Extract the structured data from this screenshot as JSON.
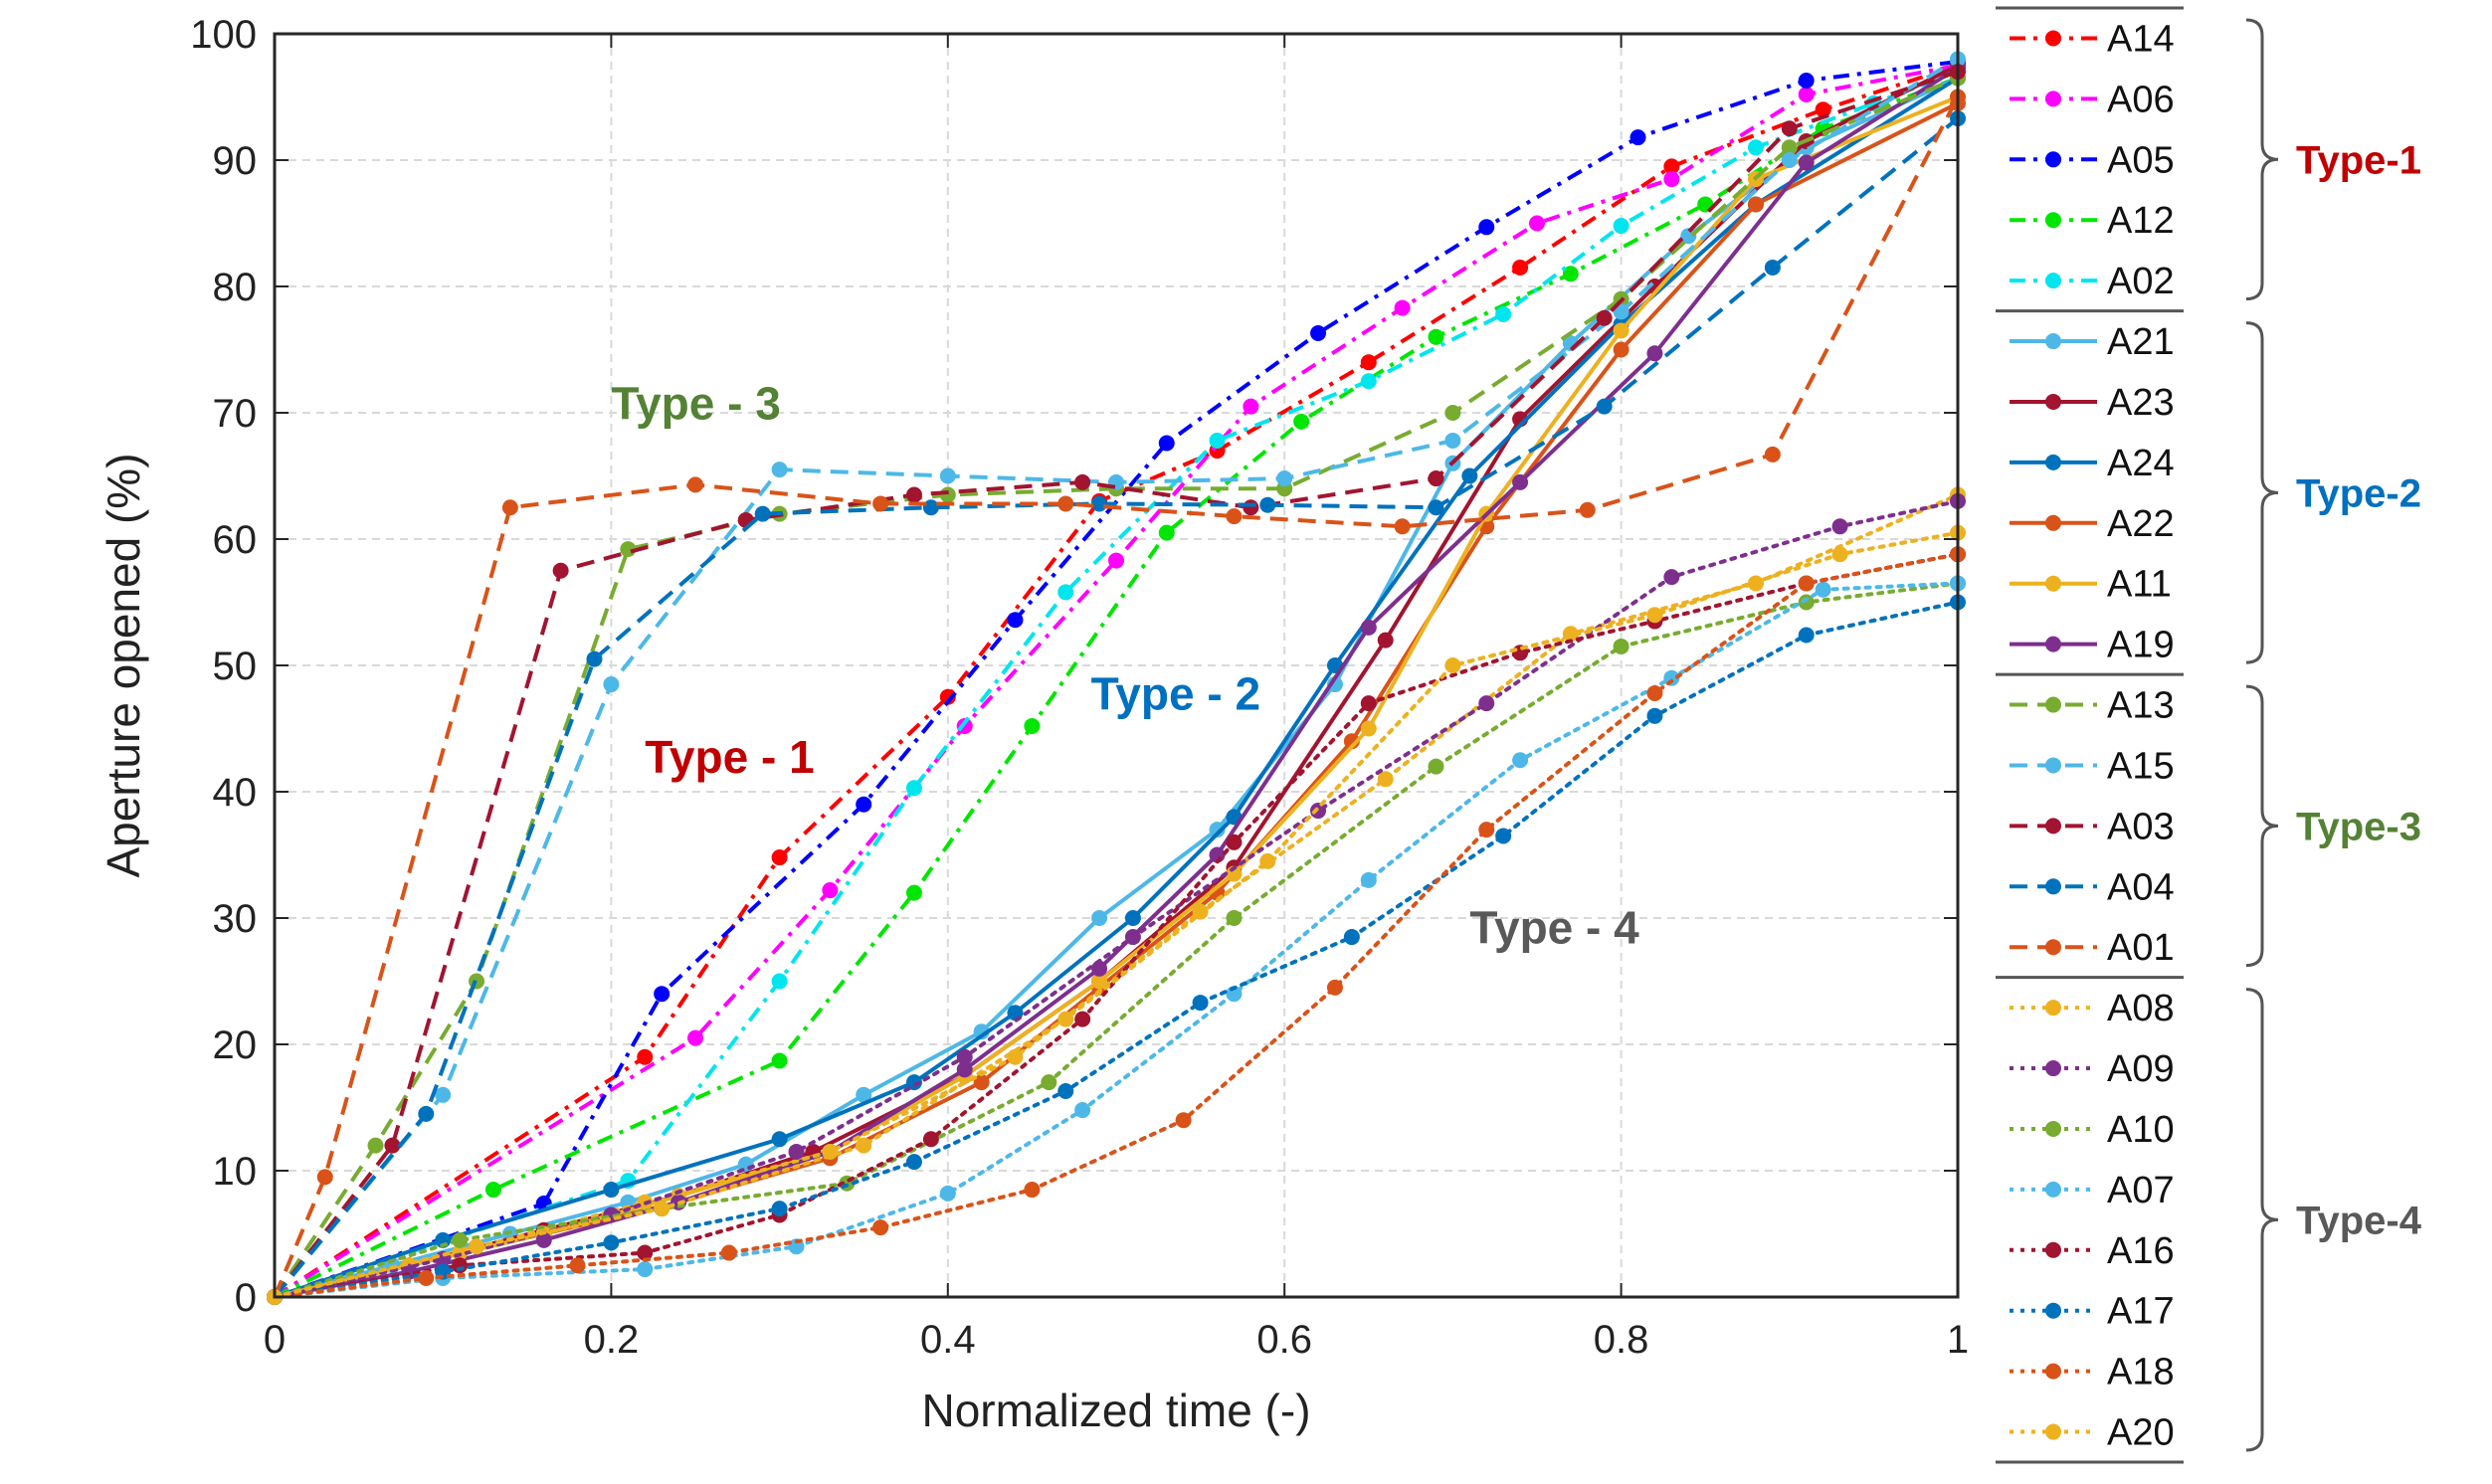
{
  "chart_data": {
    "type": "line",
    "xlabel": "Normalized time (-)",
    "ylabel": "Aperture opened (%)",
    "xlim": [
      0,
      1
    ],
    "ylim": [
      0,
      100
    ],
    "grid": true,
    "legend_position": "right",
    "xticks": [
      {
        "value": 0,
        "label": "0"
      },
      {
        "value": 0.2,
        "label": "0.2"
      },
      {
        "value": 0.4,
        "label": "0.4"
      },
      {
        "value": 0.6,
        "label": "0.6"
      },
      {
        "value": 0.8,
        "label": "0.8"
      },
      {
        "value": 1,
        "label": "1"
      }
    ],
    "yticks": [
      {
        "value": 0,
        "label": "0"
      },
      {
        "value": 10,
        "label": "10"
      },
      {
        "value": 20,
        "label": "20"
      },
      {
        "value": 30,
        "label": "30"
      },
      {
        "value": 40,
        "label": "40"
      },
      {
        "value": 50,
        "label": "50"
      },
      {
        "value": 60,
        "label": "60"
      },
      {
        "value": 70,
        "label": "70"
      },
      {
        "value": 80,
        "label": "80"
      },
      {
        "value": 90,
        "label": "90"
      },
      {
        "value": 100,
        "label": "100"
      }
    ],
    "annotations": [
      {
        "text": "Type - 3",
        "x": 0.2,
        "y": 69.5,
        "color": "#548235"
      },
      {
        "text": "Type - 1",
        "x": 0.22,
        "y": 41.5,
        "color": "#c00000"
      },
      {
        "text": "Type - 2",
        "x": 0.485,
        "y": 46.5,
        "color": "#0070c0"
      },
      {
        "text": "Type - 4",
        "x": 0.71,
        "y": 28,
        "color": "#595959"
      }
    ],
    "groups": [
      {
        "name": "Type-1",
        "color": "#c00000"
      },
      {
        "name": "Type-2",
        "color": "#0070c0"
      },
      {
        "name": "Type-3",
        "color": "#548235"
      },
      {
        "name": "Type-4",
        "color": "#595959"
      }
    ],
    "series": [
      {
        "name": "A14",
        "group": 0,
        "color": "#ff0000",
        "style": "dashdot",
        "x": [
          0,
          0.22,
          0.3,
          0.4,
          0.49,
          0.56,
          0.65,
          0.74,
          0.83,
          0.92,
          1
        ],
        "y": [
          0,
          19,
          34.8,
          47.5,
          63,
          67,
          74,
          81.5,
          89.5,
          94,
          97.5
        ]
      },
      {
        "name": "A06",
        "group": 0,
        "color": "#ff00ff",
        "style": "dashdot",
        "x": [
          0,
          0.25,
          0.33,
          0.41,
          0.5,
          0.58,
          0.67,
          0.75,
          0.83,
          0.91,
          1
        ],
        "y": [
          0,
          20.5,
          32.2,
          45.2,
          58.3,
          70.5,
          78.3,
          85,
          88.5,
          95.2,
          97.5
        ]
      },
      {
        "name": "A05",
        "group": 0,
        "color": "#0000ff",
        "style": "dashdot",
        "x": [
          0,
          0.16,
          0.23,
          0.35,
          0.44,
          0.53,
          0.62,
          0.72,
          0.81,
          0.91,
          1
        ],
        "y": [
          0,
          7.4,
          24,
          39,
          53.6,
          67.6,
          76.3,
          84.7,
          91.8,
          96.3,
          97.8
        ]
      },
      {
        "name": "A12",
        "group": 0,
        "color": "#00e600",
        "style": "dashdot",
        "x": [
          0,
          0.13,
          0.3,
          0.38,
          0.45,
          0.53,
          0.61,
          0.69,
          0.77,
          0.85,
          0.92,
          1
        ],
        "y": [
          0,
          8.5,
          18.7,
          32,
          45.2,
          60.5,
          69.3,
          76,
          81,
          86.5,
          92.5,
          96.5
        ]
      },
      {
        "name": "A02",
        "group": 0,
        "color": "#00e5ee",
        "style": "dashdot",
        "x": [
          0,
          0.21,
          0.3,
          0.38,
          0.47,
          0.56,
          0.65,
          0.73,
          0.8,
          0.88,
          0.95,
          1
        ],
        "y": [
          0,
          9.2,
          25,
          40.3,
          55.8,
          67.8,
          72.5,
          77.8,
          84.8,
          91,
          94.5,
          97
        ]
      },
      {
        "name": "A21",
        "group": 1,
        "color": "#4db8e8",
        "style": "solid",
        "x": [
          0,
          0.07,
          0.14,
          0.21,
          0.28,
          0.35,
          0.42,
          0.49,
          0.56,
          0.63,
          0.7,
          0.77,
          0.84,
          0.91,
          1
        ],
        "y": [
          0,
          2.5,
          5,
          7.5,
          10.5,
          16,
          21,
          30,
          37,
          48.5,
          66,
          75.5,
          84,
          91,
          96.5
        ]
      },
      {
        "name": "A23",
        "group": 1,
        "color": "#a2142f",
        "style": "solid",
        "x": [
          0,
          0.08,
          0.16,
          0.24,
          0.32,
          0.41,
          0.49,
          0.57,
          0.66,
          0.74,
          0.82,
          0.91,
          1
        ],
        "y": [
          0,
          2.5,
          5.3,
          8,
          11.5,
          17.5,
          25,
          34,
          52,
          69.5,
          80,
          91.5,
          97.5
        ]
      },
      {
        "name": "A24",
        "group": 1,
        "color": "#0072bd",
        "style": "solid",
        "x": [
          0,
          0.1,
          0.2,
          0.3,
          0.38,
          0.44,
          0.51,
          0.57,
          0.63,
          0.71,
          0.8,
          0.88,
          1
        ],
        "y": [
          0,
          4.5,
          8.5,
          12.5,
          17,
          22.5,
          30,
          38,
          50,
          65,
          77,
          86.5,
          96.5
        ]
      },
      {
        "name": "A22",
        "group": 1,
        "color": "#d95319",
        "style": "solid",
        "x": [
          0,
          0.08,
          0.16,
          0.24,
          0.33,
          0.42,
          0.49,
          0.56,
          0.64,
          0.72,
          0.8,
          0.88,
          1
        ],
        "y": [
          0,
          2.5,
          5,
          7.5,
          11,
          17,
          24.5,
          32,
          44,
          61,
          75,
          86.5,
          94.5
        ]
      },
      {
        "name": "A11",
        "group": 1,
        "color": "#edb120",
        "style": "solid",
        "x": [
          0,
          0.08,
          0.16,
          0.24,
          0.33,
          0.41,
          0.49,
          0.57,
          0.65,
          0.72,
          0.8,
          0.88,
          1
        ],
        "y": [
          0,
          2.5,
          5,
          8,
          11.5,
          17.5,
          25,
          33.5,
          45,
          62,
          76.5,
          88.5,
          95
        ]
      },
      {
        "name": "A19",
        "group": 1,
        "color": "#7e2f8e",
        "style": "solid",
        "x": [
          0,
          0.08,
          0.16,
          0.24,
          0.33,
          0.41,
          0.49,
          0.56,
          0.65,
          0.74,
          0.82,
          0.91,
          1
        ],
        "y": [
          0,
          2,
          4.5,
          7.5,
          11.5,
          18,
          26,
          35,
          53,
          64.5,
          74.7,
          89.8,
          97.3
        ]
      },
      {
        "name": "A13",
        "group": 2,
        "color": "#77ac30",
        "style": "dashed",
        "x": [
          0,
          0.06,
          0.12,
          0.21,
          0.3,
          0.4,
          0.5,
          0.6,
          0.7,
          0.8,
          0.9,
          1
        ],
        "y": [
          0,
          12,
          25,
          59.2,
          62,
          63.5,
          64,
          64,
          70,
          79,
          91,
          96.5
        ]
      },
      {
        "name": "A15",
        "group": 2,
        "color": "#4db8e8",
        "style": "dashed",
        "x": [
          0,
          0.1,
          0.2,
          0.3,
          0.4,
          0.5,
          0.6,
          0.7,
          0.8,
          0.9,
          1
        ],
        "y": [
          0,
          16,
          48.5,
          65.5,
          65,
          64.5,
          64.8,
          67.8,
          78,
          90,
          98
        ]
      },
      {
        "name": "A03",
        "group": 2,
        "color": "#a2142f",
        "style": "dashed",
        "x": [
          0,
          0.07,
          0.17,
          0.28,
          0.38,
          0.48,
          0.58,
          0.69,
          0.79,
          0.9,
          1
        ],
        "y": [
          0,
          12,
          57.5,
          61.5,
          63.5,
          64.5,
          62.5,
          64.8,
          77.5,
          92.5,
          97
        ]
      },
      {
        "name": "A04",
        "group": 2,
        "color": "#0072bd",
        "style": "dashed",
        "x": [
          0,
          0.09,
          0.19,
          0.29,
          0.39,
          0.49,
          0.59,
          0.69,
          0.79,
          0.89,
          1
        ],
        "y": [
          0,
          14.5,
          50.5,
          62,
          62.5,
          62.8,
          62.7,
          62.5,
          70.5,
          81.5,
          93.3
        ]
      },
      {
        "name": "A01",
        "group": 2,
        "color": "#d95319",
        "style": "dashed",
        "x": [
          0,
          0.03,
          0.14,
          0.25,
          0.36,
          0.47,
          0.57,
          0.67,
          0.78,
          0.89,
          1
        ],
        "y": [
          0,
          9.5,
          62.5,
          64.3,
          62.8,
          62.8,
          61.8,
          61,
          62.3,
          66.7,
          95
        ]
      },
      {
        "name": "A08",
        "group": 3,
        "color": "#edb120",
        "style": "dotted",
        "x": [
          0,
          0.11,
          0.22,
          0.33,
          0.44,
          0.55,
          0.66,
          0.77,
          0.88,
          1
        ],
        "y": [
          0,
          3.5,
          7.5,
          11.5,
          19,
          30.5,
          41,
          52.5,
          56.5,
          63.5
        ]
      },
      {
        "name": "A09",
        "group": 3,
        "color": "#7e2f8e",
        "style": "dotted",
        "x": [
          0,
          0.1,
          0.2,
          0.31,
          0.41,
          0.51,
          0.62,
          0.72,
          0.83,
          0.93,
          1
        ],
        "y": [
          0,
          3,
          6.5,
          11.5,
          19,
          28.5,
          38.5,
          47,
          57,
          61,
          63
        ]
      },
      {
        "name": "A10",
        "group": 3,
        "color": "#77ac30",
        "style": "dotted",
        "x": [
          0,
          0.11,
          0.23,
          0.34,
          0.46,
          0.57,
          0.69,
          0.8,
          0.91,
          1
        ],
        "y": [
          0,
          4.5,
          7,
          9,
          17,
          30,
          42,
          51.5,
          55,
          56.5
        ]
      },
      {
        "name": "A07",
        "group": 3,
        "color": "#4db8e8",
        "style": "dotted",
        "x": [
          0,
          0.1,
          0.22,
          0.31,
          0.4,
          0.48,
          0.57,
          0.65,
          0.74,
          0.83,
          0.92,
          1
        ],
        "y": [
          0,
          1.5,
          2.2,
          4,
          8.2,
          14.8,
          24,
          33,
          42.5,
          49,
          56,
          56.5
        ]
      },
      {
        "name": "A16",
        "group": 3,
        "color": "#a2142f",
        "style": "dotted",
        "x": [
          0,
          0.11,
          0.22,
          0.3,
          0.39,
          0.48,
          0.57,
          0.65,
          0.74,
          0.82,
          0.91,
          1
        ],
        "y": [
          0,
          2.5,
          3.5,
          6.5,
          12.5,
          22,
          36,
          47,
          51,
          53.5,
          56.5,
          58.8
        ]
      },
      {
        "name": "A17",
        "group": 3,
        "color": "#0072bd",
        "style": "dotted",
        "x": [
          0,
          0.1,
          0.2,
          0.3,
          0.38,
          0.47,
          0.55,
          0.64,
          0.73,
          0.82,
          0.91,
          1
        ],
        "y": [
          0,
          2,
          4.3,
          7,
          10.7,
          16.3,
          23.3,
          28.5,
          36.5,
          46,
          52.4,
          55
        ]
      },
      {
        "name": "A18",
        "group": 3,
        "color": "#d95319",
        "style": "dotted",
        "x": [
          0,
          0.09,
          0.18,
          0.27,
          0.36,
          0.45,
          0.54,
          0.63,
          0.72,
          0.82,
          0.91,
          1
        ],
        "y": [
          0,
          1.5,
          2.5,
          3.5,
          5.5,
          8.5,
          14,
          24.5,
          37,
          47.8,
          56.5,
          58.8
        ]
      },
      {
        "name": "A20",
        "group": 3,
        "color": "#edb120",
        "style": "dotted",
        "x": [
          0,
          0.12,
          0.23,
          0.35,
          0.47,
          0.59,
          0.7,
          0.82,
          0.93,
          1
        ],
        "y": [
          0,
          4,
          7,
          12,
          22,
          34.5,
          50,
          54,
          58.8,
          60.5
        ]
      }
    ]
  }
}
